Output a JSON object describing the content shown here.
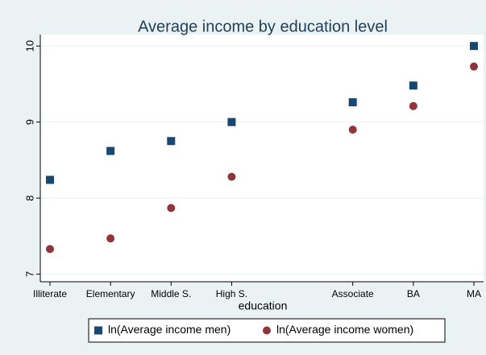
{
  "chart_data": {
    "type": "scatter",
    "title": "Average income by education level",
    "x_label": "education",
    "categories": [
      "Illiterate",
      "Elementary",
      "Middle S.",
      "High S.",
      null,
      "Associate",
      "BA",
      "MA"
    ],
    "series": [
      {
        "name": "ln(Average income men)",
        "color": "#1a476f",
        "marker": "square",
        "values": [
          8.24,
          8.62,
          8.75,
          9.0,
          null,
          9.26,
          9.48,
          10.0
        ]
      },
      {
        "name": "ln(Average income women)",
        "color": "#90353b",
        "marker": "circle",
        "values": [
          7.33,
          7.47,
          7.87,
          8.28,
          null,
          8.9,
          9.21,
          9.73
        ]
      }
    ],
    "ylim": [
      6.9,
      10.15
    ],
    "yticks": [
      7,
      8,
      9,
      10
    ],
    "grid": true,
    "legend": "bottom"
  }
}
